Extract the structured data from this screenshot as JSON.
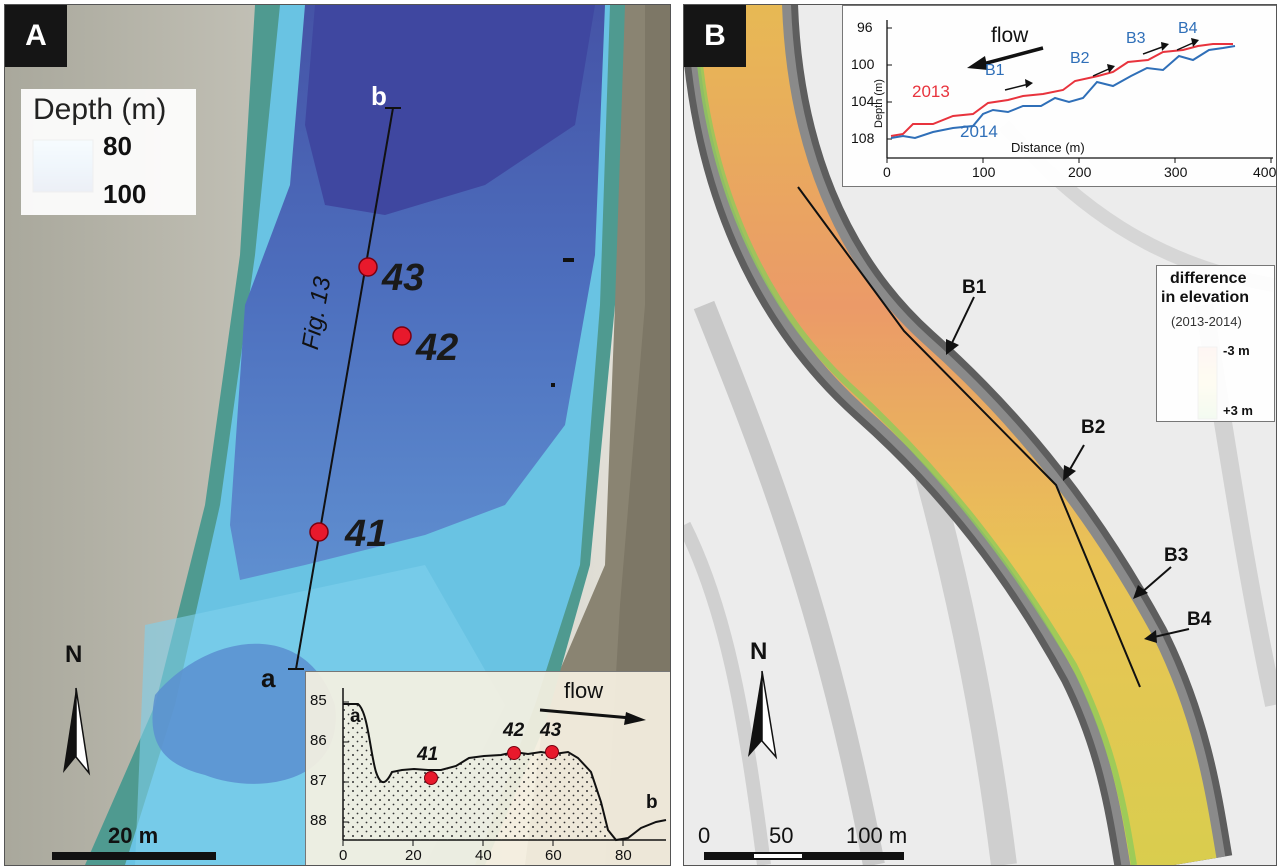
{
  "panel_a": {
    "tag": "A",
    "legend": {
      "title": "Depth (m)",
      "max": "80",
      "min": "100"
    },
    "profile_label": "Fig. 13",
    "endpoints": {
      "start": "a",
      "end": "b"
    },
    "sites": [
      "41",
      "42",
      "43"
    ],
    "scale_bar": "20 m",
    "north": "N",
    "inset": {
      "flow_label": "flow",
      "y_ticks": [
        "85",
        "86",
        "87",
        "88"
      ],
      "x_ticks": [
        "0",
        "20",
        "40",
        "60",
        "80"
      ],
      "end_a": "a",
      "end_b": "b",
      "sites": [
        "41",
        "42",
        "43"
      ]
    }
  },
  "panel_b": {
    "tag": "B",
    "north": "N",
    "scale": {
      "zero": "0",
      "mid": "50",
      "end": "100 m"
    },
    "legend": {
      "title_1": "difference",
      "title_2": "in elevation",
      "period": "(2013-2014)",
      "neg": "-3 m",
      "pos": "+3 m",
      "colors": {
        "neg": "#ee8a6a",
        "mid": "#f2d65a",
        "pos": "#6cc24a"
      }
    },
    "map_labels": [
      "B1",
      "B2",
      "B3",
      "B4"
    ],
    "inset": {
      "flow_label": "flow",
      "ylabel": "Depth (m)",
      "xlabel": "Distance (m)",
      "y_ticks": [
        "96",
        "100",
        "104",
        "108"
      ],
      "x_ticks": [
        "0",
        "100",
        "200",
        "300",
        "400"
      ],
      "series_2013": "2013",
      "series_2014": "2014",
      "markers": [
        "B1",
        "B2",
        "B3",
        "B4"
      ],
      "colors": {
        "s2013": "#e8333d",
        "s2014": "#2f6fb8"
      }
    }
  }
}
